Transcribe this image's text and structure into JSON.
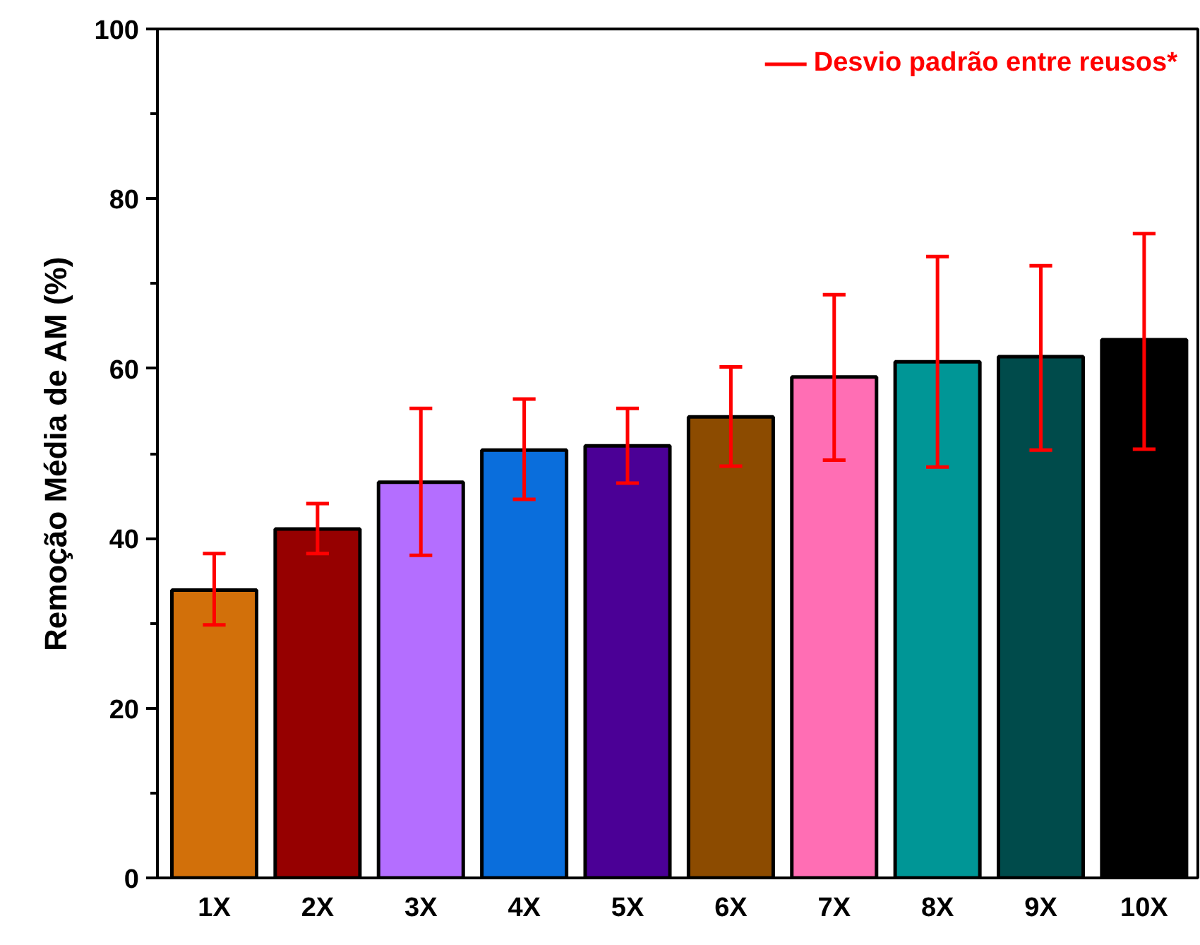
{
  "chart_data": {
    "type": "bar",
    "ylabel": "Remoção Média de AM (%)",
    "categories": [
      "1X",
      "2X",
      "3X",
      "4X",
      "5X",
      "6X",
      "7X",
      "8X",
      "9X",
      "10X"
    ],
    "values": [
      33.9,
      41.1,
      46.6,
      50.4,
      50.9,
      54.3,
      59.0,
      60.8,
      61.4,
      63.4
    ],
    "colors": [
      "#d2700a",
      "#960000",
      "#b46eff",
      "#0a6edc",
      "#4b0096",
      "#8c4b00",
      "#ff6eb4",
      "#009696",
      "#004b4b",
      "#000000"
    ],
    "errors": [
      [
        29.8,
        38.2
      ],
      [
        38.2,
        44.1
      ],
      [
        38.0,
        55.3
      ],
      [
        44.6,
        56.4
      ],
      [
        46.5,
        55.3
      ],
      [
        48.5,
        60.2
      ],
      [
        49.2,
        68.7
      ],
      [
        48.4,
        73.2
      ],
      [
        50.4,
        72.1
      ],
      [
        50.5,
        75.9
      ]
    ],
    "annotations": [
      "Desvio padrão entre reusos*"
    ],
    "ylim": [
      0,
      100
    ],
    "yticks": [
      0,
      20,
      40,
      60,
      80,
      100
    ],
    "grid": false
  }
}
